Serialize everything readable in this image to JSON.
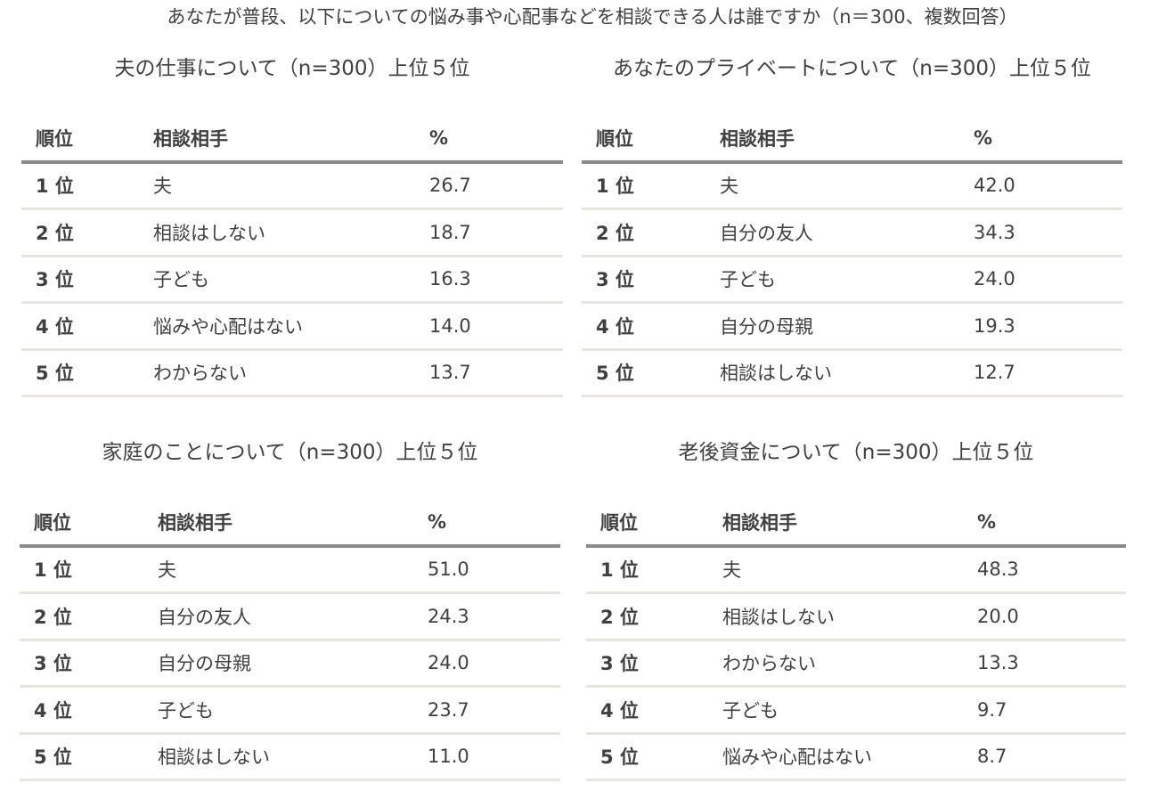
{
  "title": "あなたが普段、以下についての悩み事や心配事などを相談できる人は誰ですか（n＝300、複数回答）",
  "headers": {
    "rank": "順位",
    "person": "相談相手",
    "pct": "%"
  },
  "panels": [
    {
      "title": "夫の仕事について（n=300）上位５位",
      "rows": [
        {
          "rank": "1 位",
          "person": "夫",
          "pct": "26.7"
        },
        {
          "rank": "2 位",
          "person": "相談はしない",
          "pct": "18.7"
        },
        {
          "rank": "3 位",
          "person": "子ども",
          "pct": "16.3"
        },
        {
          "rank": "4 位",
          "person": "悩みや心配はない",
          "pct": "14.0"
        },
        {
          "rank": "5 位",
          "person": "わからない",
          "pct": "13.7"
        }
      ]
    },
    {
      "title": "あなたのプライベートについて（n=300）上位５位",
      "rows": [
        {
          "rank": "1 位",
          "person": "夫",
          "pct": "42.0"
        },
        {
          "rank": "2 位",
          "person": "自分の友人",
          "pct": "34.3"
        },
        {
          "rank": "3 位",
          "person": "子ども",
          "pct": "24.0"
        },
        {
          "rank": "4 位",
          "person": "自分の母親",
          "pct": "19.3"
        },
        {
          "rank": "5 位",
          "person": "相談はしない",
          "pct": "12.7"
        }
      ]
    },
    {
      "title": "家庭のことについて（n=300）上位５位",
      "rows": [
        {
          "rank": "1 位",
          "person": "夫",
          "pct": "51.0"
        },
        {
          "rank": "2 位",
          "person": "自分の友人",
          "pct": "24.3"
        },
        {
          "rank": "3 位",
          "person": "自分の母親",
          "pct": "24.0"
        },
        {
          "rank": "4 位",
          "person": "子ども",
          "pct": "23.7"
        },
        {
          "rank": "5 位",
          "person": "相談はしない",
          "pct": "11.0"
        }
      ]
    },
    {
      "title": "老後資金について（n=300）上位５位",
      "rows": [
        {
          "rank": "1 位",
          "person": "夫",
          "pct": "48.3"
        },
        {
          "rank": "2 位",
          "person": "相談はしない",
          "pct": "20.0"
        },
        {
          "rank": "3 位",
          "person": "わからない",
          "pct": "13.3"
        },
        {
          "rank": "4 位",
          "person": "子ども",
          "pct": "9.7"
        },
        {
          "rank": "5 位",
          "person": "悩みや心配はない",
          "pct": "8.7"
        }
      ]
    }
  ]
}
